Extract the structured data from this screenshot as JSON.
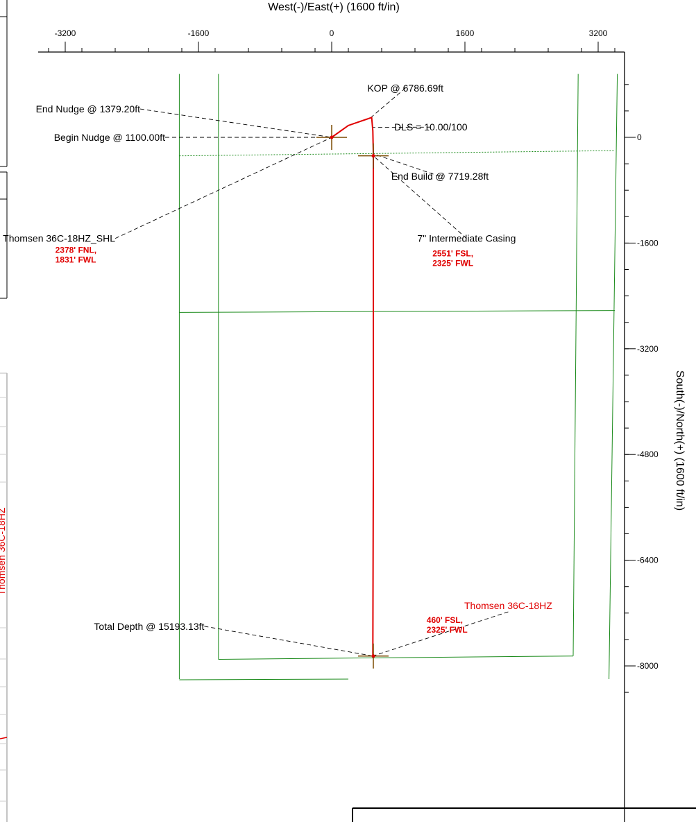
{
  "chart_data": {
    "type": "line",
    "xlabel": "West(-)/East(+) (1600 ft/in)",
    "ylabel": "South(-)/North(+) (1600 ft/in)",
    "x_ticks": [
      -3200,
      -1600,
      0,
      1600,
      3200
    ],
    "y_ticks": [
      0,
      -1600,
      -3200,
      -4800,
      -6400,
      -8000
    ],
    "xlim": [
      -3200,
      3400
    ],
    "ylim": [
      -8200,
      900
    ],
    "colors": {
      "wellpath": "#e00000",
      "lease": "#1a8a1a",
      "label": "#000000",
      "note": "#e00000",
      "marker": "#7a4a00"
    },
    "series": [
      {
        "name": "Thomsen 36C-18HZ",
        "points": [
          [
            0,
            0
          ],
          [
            200,
            180
          ],
          [
            480,
            300
          ],
          [
            494,
            100
          ],
          [
            500,
            -250
          ],
          [
            500,
            -2000
          ],
          [
            500,
            -5000
          ],
          [
            494,
            -7850
          ]
        ]
      }
    ],
    "lease_lines": [
      {
        "points": [
          [
            -1830,
            960
          ],
          [
            -1830,
            -8200
          ]
        ]
      },
      {
        "points": [
          [
            -1360,
            960
          ],
          [
            -1360,
            -7900
          ]
        ]
      },
      {
        "points": [
          [
            2960,
            960
          ],
          [
            2900,
            -7850
          ]
        ]
      },
      {
        "points": [
          [
            3430,
            960
          ],
          [
            3330,
            -8200
          ]
        ]
      },
      {
        "points": [
          [
            -1830,
            -2650
          ],
          [
            3400,
            -2620
          ]
        ]
      },
      {
        "points": [
          [
            -1360,
            -7900
          ],
          [
            2900,
            -7850
          ]
        ]
      },
      {
        "points": [
          [
            -1830,
            -8210
          ],
          [
            200,
            -8200
          ]
        ]
      }
    ],
    "dotted_lines": [
      {
        "points": [
          [
            -1830,
            -280
          ],
          [
            3400,
            -200
          ]
        ]
      }
    ],
    "markers": [
      {
        "name": "shl-marker",
        "x": 0,
        "y": 0
      },
      {
        "name": "end-build-marker",
        "x": 500,
        "y": -280
      },
      {
        "name": "total-depth-marker",
        "x": 500,
        "y": -7850
      }
    ],
    "annotations": [
      {
        "text": "KOP @ 6786.69ft",
        "x": 885,
        "y": 745,
        "target": [
          470,
          300
        ]
      },
      {
        "text": "End Nudge @ 1379.20ft",
        "x": -2300,
        "y": 430,
        "target": [
          0,
          0
        ]
      },
      {
        "text": "DLS = 10.00/100",
        "x": 1190,
        "y": 155,
        "target": [
          490,
          150
        ]
      },
      {
        "text": "Begin Nudge @ 1100.00ft",
        "x": -2000,
        "y": 0,
        "target": [
          0,
          0
        ]
      },
      {
        "text": "End Build @ 7719.28ft",
        "x": 1300,
        "y": -590,
        "target": [
          500,
          -250
        ]
      },
      {
        "text": "Thomsen 36C-18HZ_SHL",
        "x": -2600,
        "y": -1530,
        "target": [
          0,
          0
        ]
      },
      {
        "text": "7\" Intermediate Casing",
        "x": 1620,
        "y": -1530,
        "target": [
          500,
          -280
        ]
      },
      {
        "text": "Total Depth @ 15193.13ft",
        "x": -1530,
        "y": -7400,
        "target": [
          494,
          -7850
        ]
      }
    ],
    "well_label": {
      "text": "Thomsen 36C-18HZ",
      "x": 2120,
      "y": -7140
    },
    "location_notes": [
      {
        "lines": [
          "2378' FNL,",
          "1831' FWL"
        ],
        "x": -3320,
        "y": -1750
      },
      {
        "lines": [
          "2551' FSL,",
          "2325' FWL"
        ],
        "x": 1210,
        "y": -1800
      },
      {
        "lines": [
          "460' FSL,",
          "2325' FWL"
        ],
        "x": 1140,
        "y": -7350
      }
    ],
    "side_label": {
      "text": "Thomsen 36C-18HZ"
    }
  }
}
